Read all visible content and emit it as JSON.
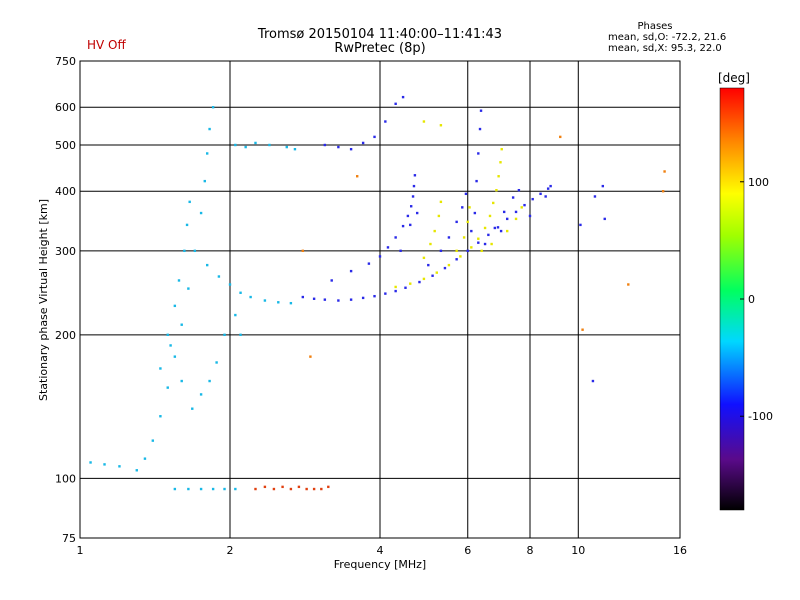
{
  "header": {
    "title_line1": "Tromsø 20150104 11:40:00–11:41:43",
    "title_line2": "RwPretec (8p)",
    "hv_status": "HV Off",
    "phases_title": "Phases",
    "phases_o": "mean, sd,O: -72.2, 21.6",
    "phases_x": "mean, sd,X:  95.3, 22.0"
  },
  "colors": {
    "hv_status": "#c00000",
    "grid": "#000000",
    "frame": "#000000"
  },
  "chart_data": {
    "type": "scatter",
    "title": "Tromsø 20150104 11:40:00–11:41:43",
    "subtitle": "RwPretec (8p)",
    "xlabel": "Frequency [MHz]",
    "ylabel": "Stationary phase Virtual Height [km]",
    "x_scale": "log",
    "y_scale": "log",
    "xlim": [
      1,
      16
    ],
    "ylim": [
      75,
      750
    ],
    "x_ticks": [
      1,
      2,
      4,
      6,
      8,
      10,
      16
    ],
    "x_tick_labels": [
      "1",
      "2",
      "4",
      "6",
      "8",
      "10",
      "16"
    ],
    "y_ticks": [
      75,
      100,
      200,
      300,
      400,
      500,
      600,
      750
    ],
    "y_tick_labels": [
      "75",
      "100",
      "200",
      "300",
      "400",
      "500",
      "600",
      "750"
    ],
    "grid": true,
    "colorbar": {
      "label": "[deg]",
      "range": [
        -180,
        180
      ],
      "ticks": [
        100,
        0,
        -100
      ],
      "tick_labels": [
        "100",
        "0",
        "-100"
      ],
      "colormap": "rainbow"
    },
    "series": [
      {
        "phase": -100,
        "color": "#2a2ae8",
        "points": [
          [
            2.8,
            240
          ],
          [
            2.95,
            238
          ],
          [
            3.1,
            237
          ],
          [
            3.3,
            236
          ],
          [
            3.5,
            237
          ],
          [
            3.7,
            239
          ],
          [
            3.9,
            241
          ],
          [
            4.1,
            244
          ],
          [
            4.3,
            247
          ],
          [
            4.5,
            251
          ],
          [
            4.8,
            258
          ],
          [
            5.1,
            266
          ],
          [
            5.4,
            276
          ],
          [
            5.7,
            288
          ],
          [
            6.0,
            300
          ],
          [
            6.3,
            312
          ],
          [
            6.6,
            324
          ],
          [
            6.9,
            336
          ],
          [
            7.2,
            350
          ],
          [
            7.5,
            362
          ],
          [
            7.8,
            374
          ],
          [
            8.1,
            385
          ],
          [
            8.4,
            395
          ],
          [
            8.7,
            405
          ],
          [
            3.2,
            260
          ],
          [
            3.5,
            272
          ],
          [
            3.8,
            282
          ],
          [
            4.0,
            292
          ],
          [
            4.15,
            305
          ],
          [
            4.3,
            320
          ],
          [
            4.45,
            338
          ],
          [
            4.55,
            355
          ],
          [
            4.62,
            372
          ],
          [
            4.66,
            390
          ],
          [
            4.68,
            410
          ],
          [
            4.7,
            432
          ],
          [
            5.0,
            280
          ],
          [
            5.3,
            300
          ],
          [
            5.5,
            320
          ],
          [
            5.7,
            345
          ],
          [
            5.85,
            370
          ],
          [
            5.95,
            395
          ],
          [
            6.5,
            310
          ],
          [
            6.8,
            335
          ],
          [
            7.1,
            362
          ],
          [
            7.4,
            388
          ],
          [
            7.6,
            402
          ],
          [
            6.2,
            360
          ],
          [
            6.25,
            420
          ],
          [
            6.3,
            480
          ],
          [
            6.35,
            540
          ],
          [
            6.38,
            590
          ],
          [
            3.1,
            500
          ],
          [
            3.3,
            495
          ],
          [
            3.5,
            490
          ],
          [
            3.7,
            505
          ],
          [
            3.9,
            520
          ],
          [
            4.1,
            560
          ],
          [
            4.3,
            610
          ],
          [
            4.45,
            630
          ],
          [
            4.4,
            300
          ],
          [
            4.6,
            340
          ],
          [
            4.75,
            360
          ],
          [
            6.1,
            330
          ],
          [
            7.0,
            330
          ],
          [
            8.0,
            355
          ],
          [
            8.6,
            390
          ],
          [
            8.8,
            410
          ],
          [
            10.8,
            390
          ],
          [
            11.2,
            410
          ],
          [
            10.7,
            160
          ],
          [
            11.3,
            350
          ],
          [
            10.1,
            340
          ]
        ]
      },
      {
        "phase": 60,
        "color": "#e6e600",
        "points": [
          [
            4.3,
            252
          ],
          [
            4.6,
            256
          ],
          [
            4.9,
            262
          ],
          [
            5.2,
            270
          ],
          [
            5.5,
            280
          ],
          [
            5.8,
            292
          ],
          [
            6.1,
            305
          ],
          [
            6.3,
            318
          ],
          [
            6.5,
            335
          ],
          [
            6.65,
            355
          ],
          [
            6.75,
            378
          ],
          [
            6.85,
            402
          ],
          [
            6.92,
            430
          ],
          [
            6.98,
            460
          ],
          [
            7.02,
            490
          ],
          [
            4.9,
            290
          ],
          [
            5.05,
            310
          ],
          [
            5.15,
            330
          ],
          [
            5.25,
            355
          ],
          [
            5.3,
            380
          ],
          [
            5.7,
            300
          ],
          [
            5.9,
            320
          ],
          [
            6.0,
            345
          ],
          [
            6.05,
            370
          ],
          [
            6.4,
            300
          ],
          [
            6.7,
            310
          ],
          [
            7.2,
            330
          ],
          [
            7.5,
            350
          ],
          [
            7.7,
            370
          ],
          [
            4.9,
            560
          ],
          [
            5.3,
            550
          ]
        ]
      },
      {
        "phase": -50,
        "color": "#18b8e6",
        "points": [
          [
            1.05,
            108
          ],
          [
            1.12,
            107
          ],
          [
            1.2,
            106
          ],
          [
            1.3,
            104
          ],
          [
            1.35,
            110
          ],
          [
            1.4,
            120
          ],
          [
            1.45,
            135
          ],
          [
            1.5,
            155
          ],
          [
            1.55,
            180
          ],
          [
            1.6,
            210
          ],
          [
            1.65,
            250
          ],
          [
            1.7,
            300
          ],
          [
            1.75,
            360
          ],
          [
            1.78,
            420
          ],
          [
            1.8,
            480
          ],
          [
            1.82,
            540
          ],
          [
            1.85,
            600
          ],
          [
            1.5,
            200
          ],
          [
            1.55,
            230
          ],
          [
            1.58,
            260
          ],
          [
            1.62,
            300
          ],
          [
            1.64,
            340
          ],
          [
            1.66,
            380
          ],
          [
            1.45,
            170
          ],
          [
            1.52,
            190
          ],
          [
            1.6,
            160
          ],
          [
            1.68,
            140
          ],
          [
            1.75,
            150
          ],
          [
            1.82,
            160
          ],
          [
            1.88,
            175
          ],
          [
            1.95,
            200
          ],
          [
            1.8,
            280
          ],
          [
            1.9,
            265
          ],
          [
            2.0,
            255
          ],
          [
            2.1,
            245
          ],
          [
            2.2,
            240
          ],
          [
            2.35,
            236
          ],
          [
            2.5,
            234
          ],
          [
            2.65,
            233
          ],
          [
            1.55,
            95
          ],
          [
            1.65,
            95
          ],
          [
            1.75,
            95
          ],
          [
            1.85,
            95
          ],
          [
            1.95,
            95
          ],
          [
            2.05,
            95
          ],
          [
            2.05,
            500
          ],
          [
            2.15,
            495
          ],
          [
            2.25,
            505
          ],
          [
            2.4,
            500
          ],
          [
            2.6,
            495
          ],
          [
            2.7,
            490
          ],
          [
            2.05,
            220
          ],
          [
            2.1,
            200
          ]
        ]
      },
      {
        "phase": 160,
        "color": "#e04010",
        "points": [
          [
            2.25,
            95
          ],
          [
            2.35,
            96
          ],
          [
            2.45,
            95
          ],
          [
            2.55,
            96
          ],
          [
            2.65,
            95
          ],
          [
            2.75,
            96
          ],
          [
            2.85,
            95
          ],
          [
            2.95,
            95
          ],
          [
            3.05,
            95
          ],
          [
            3.15,
            96
          ]
        ]
      },
      {
        "phase": 130,
        "color": "#f08010",
        "points": [
          [
            9.2,
            520
          ],
          [
            10.2,
            205
          ],
          [
            12.6,
            255
          ],
          [
            14.8,
            400
          ],
          [
            14.9,
            440
          ],
          [
            3.6,
            430
          ],
          [
            2.8,
            300
          ],
          [
            2.9,
            180
          ]
        ]
      }
    ]
  }
}
